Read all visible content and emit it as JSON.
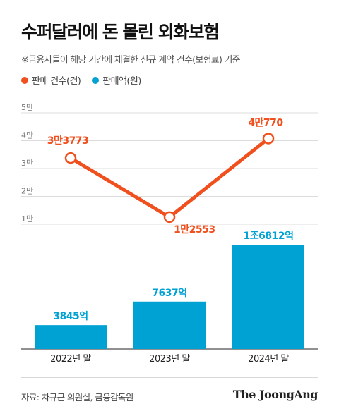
{
  "title": "수퍼달러에 돈 몰린 외화보험",
  "subtitle": "※금융사들이 해당 기간에 체결한 신규 계약 건수(보험료) 기준",
  "legend": [
    {
      "label": "판매 건수(건)",
      "color": "#f0501e"
    },
    {
      "label": "판매액(원)",
      "color": "#00a2d3"
    }
  ],
  "source": "자료: 차규근 의원실, 금융감독원",
  "brand": "The JoongAng",
  "chart_data": {
    "type": "bar+line",
    "categories": [
      "2022년 말",
      "2023년 말",
      "2024년 말"
    ],
    "y_ticks": [
      "1만",
      "2만",
      "3만",
      "4만",
      "5만"
    ],
    "y_tick_values": [
      10000,
      20000,
      30000,
      40000,
      50000
    ],
    "ylim": [
      0,
      50000
    ],
    "grid": true,
    "series": [
      {
        "name": "판매 건수(건)",
        "type": "line",
        "color": "#f0501e",
        "values": [
          33773,
          12553,
          40770
        ],
        "labels": [
          "3만3773",
          "1만2553",
          "4만770"
        ]
      },
      {
        "name": "판매액(원)",
        "type": "bar",
        "color": "#00a2d3",
        "values": [
          3845,
          7637,
          16812
        ],
        "labels": [
          "3845억",
          "7637억",
          "1조6812억"
        ]
      }
    ]
  }
}
